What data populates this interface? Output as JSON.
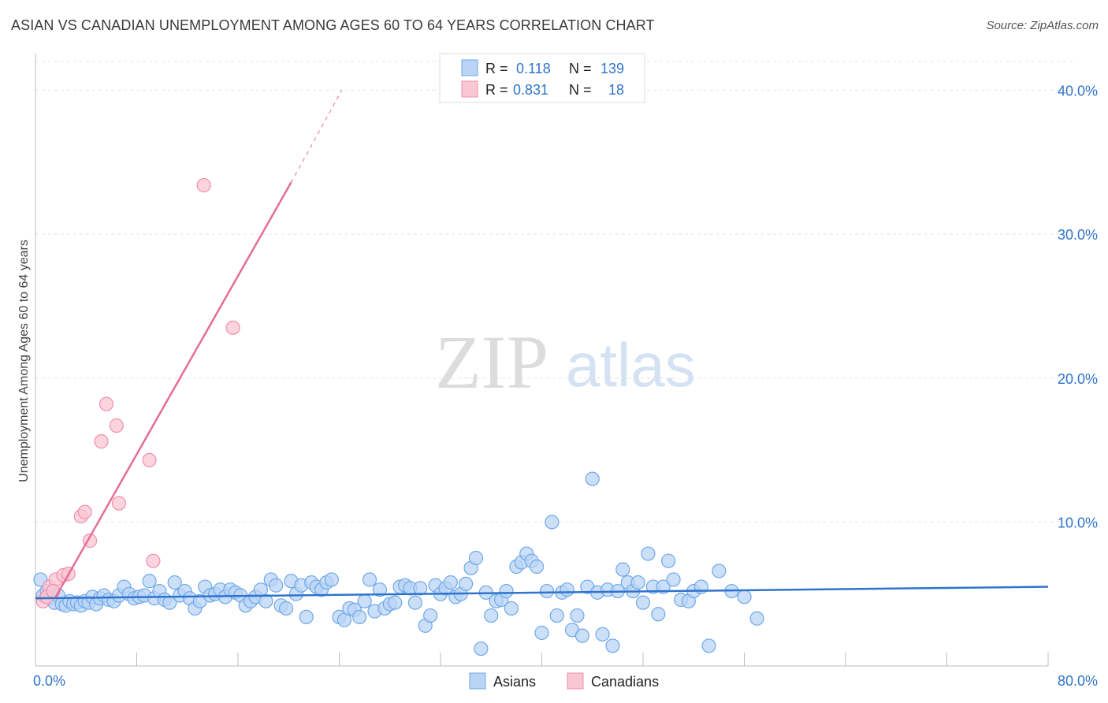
{
  "title": "ASIAN VS CANADIAN UNEMPLOYMENT AMONG AGES 60 TO 64 YEARS CORRELATION CHART",
  "source": "Source: ZipAtlas.com",
  "watermark": {
    "zip": "ZIP",
    "atlas": "atlas"
  },
  "legend_box": [
    {
      "r_label": "R =",
      "r_value": "0.118",
      "n_label": "N =",
      "n_value": "139",
      "color": "#6fa8e8",
      "fill": "#b9d4f5"
    },
    {
      "r_label": "R =",
      "r_value": "0.831",
      "n_label": "N =",
      "n_value": "18",
      "color": "#f08fab",
      "fill": "#f9c6d4"
    }
  ],
  "chart_data": {
    "type": "scatter",
    "title": "ASIAN VS CANADIAN UNEMPLOYMENT AMONG AGES 60 TO 64 YEARS CORRELATION CHART",
    "xlabel": "",
    "ylabel": "Unemployment Among Ages 60 to 64 years",
    "xlim": [
      0,
      80
    ],
    "ylim": [
      0,
      42
    ],
    "x_tick_labels": [
      "0.0%",
      "80.0%"
    ],
    "y_ticks": [
      10,
      20,
      30,
      40
    ],
    "y_tick_labels": [
      "10.0%",
      "20.0%",
      "30.0%",
      "40.0%"
    ],
    "grid": true,
    "legend_position": "bottom-center",
    "series": [
      {
        "name": "Asians",
        "color": "#6fa8e8",
        "fill": "#b9d4f5",
        "line_color": "#2f74cc",
        "trend": {
          "x1": 0,
          "y1": 4.7,
          "x2": 80,
          "y2": 5.5,
          "dashed_extension": false
        },
        "points": [
          [
            0.4,
            6.0
          ],
          [
            0.6,
            4.9
          ],
          [
            0.9,
            5.2
          ],
          [
            1.2,
            4.7
          ],
          [
            1.5,
            4.4
          ],
          [
            1.8,
            4.9
          ],
          [
            2.1,
            4.3
          ],
          [
            2.4,
            4.2
          ],
          [
            2.7,
            4.5
          ],
          [
            3.0,
            4.3
          ],
          [
            3.3,
            4.4
          ],
          [
            3.6,
            4.2
          ],
          [
            3.9,
            4.5
          ],
          [
            4.2,
            4.4
          ],
          [
            4.5,
            4.8
          ],
          [
            4.8,
            4.3
          ],
          [
            5.1,
            4.7
          ],
          [
            5.4,
            4.9
          ],
          [
            5.8,
            4.6
          ],
          [
            6.2,
            4.5
          ],
          [
            6.6,
            4.9
          ],
          [
            7.0,
            5.5
          ],
          [
            7.4,
            5.0
          ],
          [
            7.8,
            4.7
          ],
          [
            8.2,
            4.8
          ],
          [
            8.6,
            4.9
          ],
          [
            9.0,
            5.9
          ],
          [
            9.4,
            4.7
          ],
          [
            9.8,
            5.2
          ],
          [
            10.2,
            4.6
          ],
          [
            10.6,
            4.4
          ],
          [
            11.0,
            5.8
          ],
          [
            11.4,
            4.9
          ],
          [
            11.8,
            5.2
          ],
          [
            12.2,
            4.7
          ],
          [
            12.6,
            4.0
          ],
          [
            13.0,
            4.5
          ],
          [
            13.4,
            5.5
          ],
          [
            13.8,
            4.9
          ],
          [
            14.2,
            5.0
          ],
          [
            14.6,
            5.3
          ],
          [
            15.0,
            4.8
          ],
          [
            15.4,
            5.3
          ],
          [
            15.8,
            5.1
          ],
          [
            16.2,
            4.9
          ],
          [
            16.6,
            4.2
          ],
          [
            17.0,
            4.5
          ],
          [
            17.4,
            4.8
          ],
          [
            17.8,
            5.3
          ],
          [
            18.2,
            4.5
          ],
          [
            18.6,
            6.0
          ],
          [
            19.0,
            5.6
          ],
          [
            19.4,
            4.2
          ],
          [
            19.8,
            4.0
          ],
          [
            20.2,
            5.9
          ],
          [
            20.6,
            5.0
          ],
          [
            21.0,
            5.6
          ],
          [
            21.4,
            3.4
          ],
          [
            21.8,
            5.8
          ],
          [
            22.2,
            5.5
          ],
          [
            22.6,
            5.3
          ],
          [
            23.0,
            5.8
          ],
          [
            23.4,
            6.0
          ],
          [
            24.0,
            3.4
          ],
          [
            24.4,
            3.2
          ],
          [
            24.8,
            4.0
          ],
          [
            25.2,
            3.9
          ],
          [
            25.6,
            3.4
          ],
          [
            26.0,
            4.5
          ],
          [
            26.4,
            6.0
          ],
          [
            26.8,
            3.8
          ],
          [
            27.2,
            5.3
          ],
          [
            27.6,
            4.0
          ],
          [
            28.0,
            4.3
          ],
          [
            28.4,
            4.4
          ],
          [
            28.8,
            5.5
          ],
          [
            29.2,
            5.6
          ],
          [
            29.6,
            5.4
          ],
          [
            30.0,
            4.4
          ],
          [
            30.4,
            5.4
          ],
          [
            30.8,
            2.8
          ],
          [
            31.2,
            3.5
          ],
          [
            31.6,
            5.6
          ],
          [
            32.0,
            5.0
          ],
          [
            32.4,
            5.4
          ],
          [
            32.8,
            5.8
          ],
          [
            33.2,
            4.8
          ],
          [
            33.6,
            5.0
          ],
          [
            34.0,
            5.7
          ],
          [
            34.4,
            6.8
          ],
          [
            34.8,
            7.5
          ],
          [
            35.2,
            1.2
          ],
          [
            35.6,
            5.1
          ],
          [
            36.0,
            3.5
          ],
          [
            36.4,
            4.5
          ],
          [
            36.8,
            4.6
          ],
          [
            37.2,
            5.2
          ],
          [
            37.6,
            4.0
          ],
          [
            38.0,
            6.9
          ],
          [
            38.4,
            7.2
          ],
          [
            38.8,
            7.8
          ],
          [
            39.2,
            7.3
          ],
          [
            39.6,
            6.9
          ],
          [
            40.0,
            2.3
          ],
          [
            40.4,
            5.2
          ],
          [
            40.8,
            10.0
          ],
          [
            41.2,
            3.5
          ],
          [
            41.6,
            5.1
          ],
          [
            42.0,
            5.3
          ],
          [
            42.4,
            2.5
          ],
          [
            42.8,
            3.5
          ],
          [
            43.2,
            2.1
          ],
          [
            43.6,
            5.5
          ],
          [
            44.0,
            13.0
          ],
          [
            44.4,
            5.1
          ],
          [
            44.8,
            2.2
          ],
          [
            45.2,
            5.3
          ],
          [
            45.6,
            1.4
          ],
          [
            46.0,
            5.2
          ],
          [
            46.4,
            6.7
          ],
          [
            46.8,
            5.8
          ],
          [
            47.2,
            5.2
          ],
          [
            47.6,
            5.8
          ],
          [
            48.0,
            4.4
          ],
          [
            48.4,
            7.8
          ],
          [
            48.8,
            5.5
          ],
          [
            49.2,
            3.6
          ],
          [
            49.6,
            5.5
          ],
          [
            50.0,
            7.3
          ],
          [
            50.4,
            6.0
          ],
          [
            51.0,
            4.6
          ],
          [
            51.6,
            4.5
          ],
          [
            52.0,
            5.2
          ],
          [
            52.6,
            5.5
          ],
          [
            53.2,
            1.4
          ],
          [
            54.0,
            6.6
          ],
          [
            55.0,
            5.2
          ],
          [
            56.0,
            4.8
          ],
          [
            57.0,
            3.3
          ]
        ]
      },
      {
        "name": "Canadians",
        "color": "#f08fab",
        "fill": "#f9c6d4",
        "line_color": "#e46d95",
        "trend": {
          "x1": 1.6,
          "y1": 4.8,
          "x2": 20.2,
          "y2": 33.6,
          "dash_to_x": 24.2,
          "dash_to_y": 40.0
        },
        "points": [
          [
            0.6,
            4.5
          ],
          [
            1.1,
            5.5
          ],
          [
            1.6,
            6.0
          ],
          [
            2.2,
            6.3
          ],
          [
            2.6,
            6.4
          ],
          [
            3.6,
            10.4
          ],
          [
            3.9,
            10.7
          ],
          [
            4.3,
            8.7
          ],
          [
            5.2,
            15.6
          ],
          [
            5.6,
            18.2
          ],
          [
            6.4,
            16.7
          ],
          [
            6.6,
            11.3
          ],
          [
            9.0,
            14.3
          ],
          [
            9.3,
            7.3
          ],
          [
            13.3,
            33.4
          ],
          [
            15.6,
            23.5
          ],
          [
            0.9,
            4.8
          ],
          [
            1.4,
            5.2
          ]
        ]
      }
    ]
  }
}
